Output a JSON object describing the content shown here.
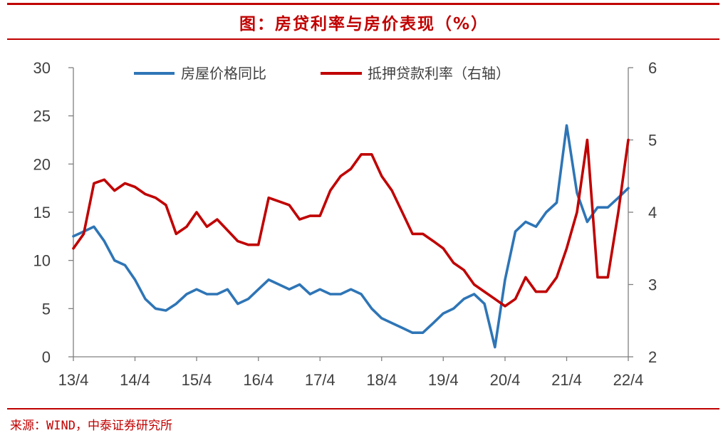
{
  "title": "图：房贷利率与房价表现（%）",
  "source": "来源：WIND，中泰证券研究所",
  "chart_data": {
    "type": "line",
    "x_tick_labels": [
      "13/4",
      "14/4",
      "15/4",
      "16/4",
      "17/4",
      "18/4",
      "19/4",
      "20/4",
      "21/4",
      "22/4"
    ],
    "y_left": {
      "ylim": [
        0,
        30
      ],
      "ticks": [
        "0",
        "5",
        "10",
        "15",
        "20",
        "25",
        "30"
      ]
    },
    "y_right": {
      "ylim": [
        2,
        6
      ],
      "ticks": [
        "2",
        "3",
        "4",
        "5",
        "6"
      ]
    },
    "grid": false,
    "legend_position": "top",
    "series": [
      {
        "name": "房屋价格同比",
        "axis": "left",
        "color": "#2e75b6",
        "x": [
          "2013-04",
          "2013-06",
          "2013-08",
          "2013-10",
          "2013-12",
          "2014-02",
          "2014-04",
          "2014-06",
          "2014-08",
          "2014-10",
          "2014-12",
          "2015-02",
          "2015-04",
          "2015-06",
          "2015-08",
          "2015-10",
          "2015-12",
          "2016-02",
          "2016-04",
          "2016-06",
          "2016-08",
          "2016-10",
          "2016-12",
          "2017-02",
          "2017-04",
          "2017-06",
          "2017-08",
          "2017-10",
          "2017-12",
          "2018-02",
          "2018-04",
          "2018-06",
          "2018-08",
          "2018-10",
          "2018-12",
          "2019-02",
          "2019-04",
          "2019-06",
          "2019-08",
          "2019-10",
          "2019-12",
          "2020-02",
          "2020-04",
          "2020-06",
          "2020-08",
          "2020-10",
          "2020-12",
          "2021-02",
          "2021-04",
          "2021-06",
          "2021-08",
          "2021-10",
          "2021-12",
          "2022-02",
          "2022-04"
        ],
        "values": [
          12.5,
          13.0,
          13.5,
          12.0,
          10.0,
          9.5,
          8.0,
          6.0,
          5.0,
          4.8,
          5.5,
          6.5,
          7.0,
          6.5,
          6.5,
          7.0,
          5.5,
          6.0,
          7.0,
          8.0,
          7.5,
          7.0,
          7.5,
          6.5,
          7.0,
          6.5,
          6.5,
          7.0,
          6.5,
          5.0,
          4.0,
          3.5,
          3.0,
          2.5,
          2.5,
          3.5,
          4.5,
          5.0,
          6.0,
          6.5,
          5.5,
          1.0,
          8.0,
          13.0,
          14.0,
          13.5,
          15.0,
          16.0,
          24.0,
          17.0,
          14.0,
          15.5,
          15.5,
          16.5,
          17.5
        ]
      },
      {
        "name": "抵押贷款利率（右轴）",
        "axis": "right",
        "color": "#c00000",
        "x": [
          "2013-04",
          "2013-06",
          "2013-08",
          "2013-10",
          "2013-12",
          "2014-02",
          "2014-04",
          "2014-06",
          "2014-08",
          "2014-10",
          "2014-12",
          "2015-02",
          "2015-04",
          "2015-06",
          "2015-08",
          "2015-10",
          "2015-12",
          "2016-02",
          "2016-04",
          "2016-06",
          "2016-08",
          "2016-10",
          "2016-12",
          "2017-02",
          "2017-04",
          "2017-06",
          "2017-08",
          "2017-10",
          "2017-12",
          "2018-02",
          "2018-04",
          "2018-06",
          "2018-08",
          "2018-10",
          "2018-12",
          "2019-02",
          "2019-04",
          "2019-06",
          "2019-08",
          "2019-10",
          "2019-12",
          "2020-02",
          "2020-04",
          "2020-06",
          "2020-08",
          "2020-10",
          "2020-12",
          "2021-02",
          "2021-04",
          "2021-06",
          "2021-08",
          "2021-10",
          "2021-12",
          "2022-02",
          "2022-04"
        ],
        "values": [
          3.5,
          3.7,
          4.4,
          4.45,
          4.3,
          4.4,
          4.35,
          4.25,
          4.2,
          4.1,
          3.7,
          3.8,
          4.0,
          3.8,
          3.9,
          3.75,
          3.6,
          3.55,
          3.55,
          4.2,
          4.15,
          4.1,
          3.9,
          3.95,
          3.95,
          4.3,
          4.5,
          4.6,
          4.8,
          4.8,
          4.5,
          4.3,
          4.0,
          3.7,
          3.7,
          3.6,
          3.5,
          3.3,
          3.2,
          3.0,
          2.9,
          2.8,
          2.7,
          2.8,
          3.1,
          2.9,
          2.9,
          3.1,
          3.5,
          4.0,
          5.0,
          3.1,
          3.1,
          4.0,
          5.0
        ]
      }
    ]
  }
}
